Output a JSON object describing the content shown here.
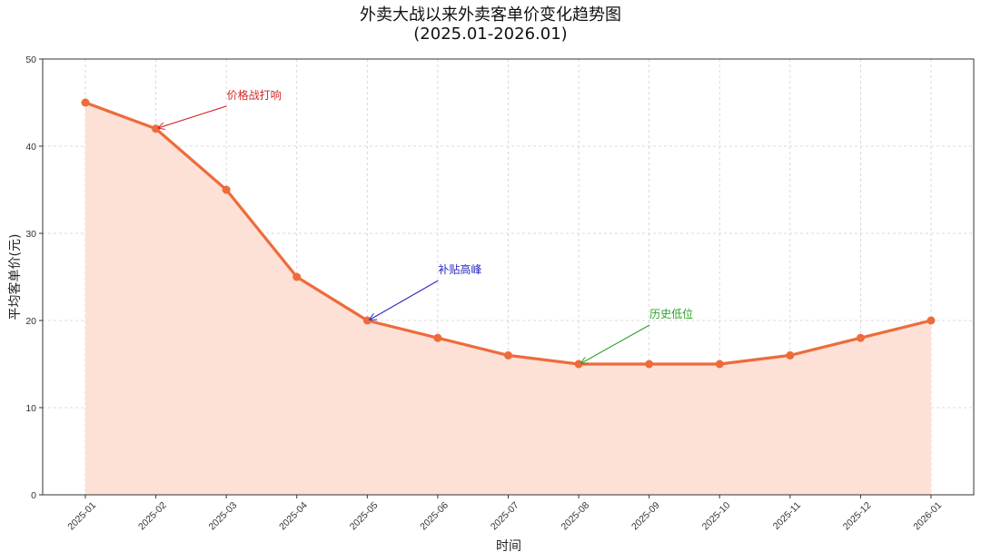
{
  "chart_data": {
    "type": "area",
    "title": "外卖大战以来外卖客单价变化趋势图",
    "subtitle": "(2025.01-2026.01)",
    "xlabel": "时间",
    "ylabel": "平均客单价(元)",
    "categories": [
      "2025-01",
      "2025-02",
      "2025-03",
      "2025-04",
      "2025-05",
      "2025-06",
      "2025-07",
      "2025-08",
      "2025-09",
      "2025-10",
      "2025-11",
      "2025-12",
      "2026-01"
    ],
    "series": [
      {
        "name": "平均客单价",
        "values": [
          45,
          42,
          35,
          25,
          20,
          18,
          16,
          15,
          15,
          15,
          16,
          18,
          20
        ],
        "color": "#ee6b3b",
        "fill": "#fde0d6"
      }
    ],
    "ylim": [
      0,
      50
    ],
    "yticks": [
      0,
      10,
      20,
      30,
      40,
      50
    ],
    "grid": true,
    "annotations": [
      {
        "text": "价格战打响",
        "point_index": 1,
        "color": "#d62728"
      },
      {
        "text": "补贴高峰",
        "point_index": 4,
        "color": "#2a2ac0"
      },
      {
        "text": "历史低位",
        "point_index": 7,
        "color": "#2ca02c"
      }
    ]
  }
}
